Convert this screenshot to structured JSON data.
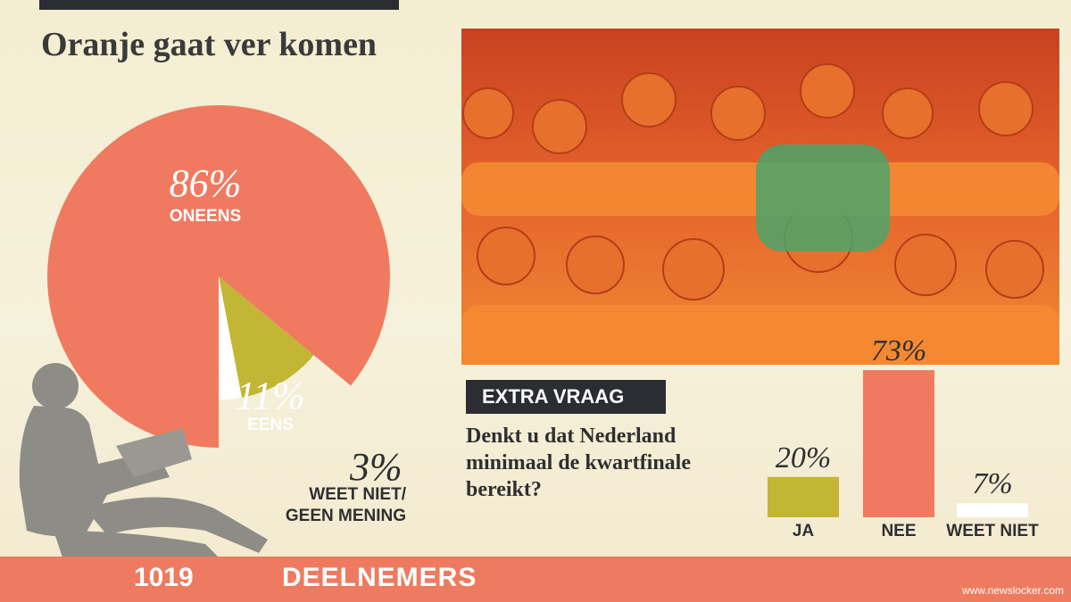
{
  "headline": "Oranje gaat ver komen",
  "pie": {
    "slices": [
      {
        "label": "ONEENS",
        "pct_text": "86%",
        "value": 86,
        "color": "#f07a60"
      },
      {
        "label": "EENS",
        "pct_text": "11%",
        "value": 11,
        "color": "#c3b635"
      },
      {
        "label_line1": "WEET NIET/",
        "label_line2": "GEEN MENING",
        "pct_text": "3%",
        "value": 3,
        "color": "#ffffff"
      }
    ]
  },
  "extra": {
    "badge": "EXTRA VRAAG",
    "question": "Denkt u dat Nederland minimaal de kwartfinale bereikt?"
  },
  "chart_data": {
    "type": "bar",
    "categories": [
      "JA",
      "NEE",
      "WEET NIET"
    ],
    "values": [
      20,
      73,
      7
    ],
    "value_labels": [
      "20%",
      "73%",
      "7%"
    ],
    "colors": [
      "#c3b635",
      "#f07a60",
      "#ffffff"
    ],
    "ylim": [
      0,
      100
    ]
  },
  "footer": {
    "count": "1019",
    "label": "DEELNEMERS"
  },
  "watermark": "www.newslocker.com"
}
